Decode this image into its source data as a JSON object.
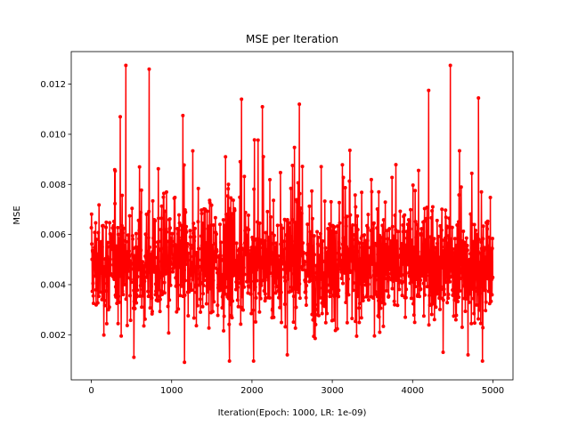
{
  "chart_data": {
    "type": "line",
    "title": "MSE per Iteration",
    "xlabel": "Iteration(Epoch: 1000, LR: 1e-09)",
    "ylabel": "MSE",
    "xlim": [
      -250,
      5250
    ],
    "ylim": [
      0.0002,
      0.0133
    ],
    "xticks": [
      0,
      1000,
      2000,
      3000,
      4000,
      5000
    ],
    "xtick_labels": [
      "0",
      "1000",
      "2000",
      "3000",
      "4000",
      "5000"
    ],
    "yticks": [
      0.002,
      0.004,
      0.006,
      0.008,
      0.01,
      0.012
    ],
    "ytick_labels": [
      "0.002",
      "0.004",
      "0.006",
      "0.008",
      "0.010",
      "0.012"
    ],
    "grid": false,
    "legend": "none",
    "series": [
      {
        "color": "#ff0000",
        "marker": "circle",
        "n_points": 5000,
        "x_range": [
          0,
          5000
        ],
        "typical_range": [
          0.002,
          0.008
        ],
        "notable_peaks": [
          {
            "x": 430,
            "y": 0.01275
          },
          {
            "x": 720,
            "y": 0.0126
          },
          {
            "x": 4470,
            "y": 0.01275
          },
          {
            "x": 4200,
            "y": 0.01175
          },
          {
            "x": 4820,
            "y": 0.01145
          },
          {
            "x": 1870,
            "y": 0.0114
          },
          {
            "x": 2590,
            "y": 0.0112
          },
          {
            "x": 2130,
            "y": 0.0111
          },
          {
            "x": 1140,
            "y": 0.01075
          },
          {
            "x": 360,
            "y": 0.0107
          }
        ],
        "notable_troughs": [
          {
            "x": 530,
            "y": 0.0011
          },
          {
            "x": 1160,
            "y": 0.0009
          },
          {
            "x": 1720,
            "y": 0.00095
          },
          {
            "x": 2020,
            "y": 0.00095
          },
          {
            "x": 2440,
            "y": 0.0012
          },
          {
            "x": 4870,
            "y": 0.00095
          },
          {
            "x": 4690,
            "y": 0.0012
          },
          {
            "x": 4380,
            "y": 0.0013
          }
        ]
      }
    ]
  }
}
